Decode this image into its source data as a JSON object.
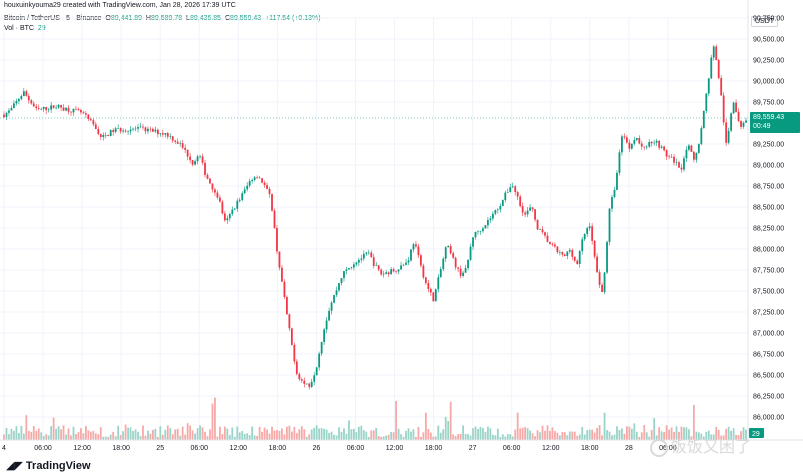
{
  "header": {
    "publisher_line": "houxuinkyouma29 created with TradingView.com, Jan 28, 2026 17:39 UTC",
    "symbol": "Bitcoin / TetherUS · 5 · Binance",
    "ohlc": {
      "o_label": "O",
      "o": "89,441.89",
      "h_label": "H",
      "h": "89,589.78",
      "l_label": "L",
      "l": "89,436.85",
      "c_label": "C",
      "c": "89,559.43",
      "change": "+117.54 (+0.13%)"
    },
    "volume_label": "Vol · BTC",
    "volume_value": "29"
  },
  "currency": "USDT",
  "price_tag": {
    "price": "89,559.43",
    "countdown": "00:49"
  },
  "volume_tag": "29",
  "colors": {
    "up": "#089981",
    "down": "#f23645",
    "up_vol": "#9ad4c9",
    "down_vol": "#f7a9a7",
    "grid": "#f0f3fa"
  },
  "brand": {
    "logo_icon": "tradingview-logo-icon",
    "name": "TradingView"
  },
  "watermark": {
    "icon": "wechat-logo-icon",
    "text": "饭饭又困了"
  },
  "chart_data": {
    "type": "candlestick",
    "symbol": "BTCUSDT",
    "interval_minutes": 5,
    "ylim": [
      85750,
      90750
    ],
    "y_ticks": [
      {
        "value": 90750,
        "label": "90,750.00"
      },
      {
        "value": 90500,
        "label": "90,500.00"
      },
      {
        "value": 90250,
        "label": "90,250.00"
      },
      {
        "value": 90000,
        "label": "90,000.00"
      },
      {
        "value": 89750,
        "label": "89,750.00"
      },
      {
        "value": 89250,
        "label": "89,250.00"
      },
      {
        "value": 89000,
        "label": "89,000.00"
      },
      {
        "value": 88750,
        "label": "88,750.00"
      },
      {
        "value": 88500,
        "label": "88,500.00"
      },
      {
        "value": 88250,
        "label": "88,250.00"
      },
      {
        "value": 88000,
        "label": "88,000.00"
      },
      {
        "value": 87750,
        "label": "87,750.00"
      },
      {
        "value": 87500,
        "label": "87,500.00"
      },
      {
        "value": 87250,
        "label": "87,250.00"
      },
      {
        "value": 87000,
        "label": "87,000.00"
      },
      {
        "value": 86750,
        "label": "86,750.00"
      },
      {
        "value": 86500,
        "label": "86,500.00"
      },
      {
        "value": 86250,
        "label": "86,250.00"
      },
      {
        "value": 86000,
        "label": "86,000.00"
      }
    ],
    "x_ticks": [
      {
        "t": 0,
        "label": "4"
      },
      {
        "t": 6,
        "label": "06:00"
      },
      {
        "t": 12,
        "label": "12:00"
      },
      {
        "t": 18,
        "label": "18:00"
      },
      {
        "t": 24,
        "label": "25"
      },
      {
        "t": 30,
        "label": "06:00"
      },
      {
        "t": 36,
        "label": "12:00"
      },
      {
        "t": 42,
        "label": "18:00"
      },
      {
        "t": 48,
        "label": "26"
      },
      {
        "t": 54,
        "label": "06:00"
      },
      {
        "t": 60,
        "label": "12:00"
      },
      {
        "t": 66,
        "label": "18:00"
      },
      {
        "t": 72,
        "label": "27"
      },
      {
        "t": 78,
        "label": "06:00"
      },
      {
        "t": 84,
        "label": "12:00"
      },
      {
        "t": 90,
        "label": "18:00"
      },
      {
        "t": 96,
        "label": "28"
      },
      {
        "t": 102,
        "label": "06:00"
      }
    ],
    "t_max": 111,
    "path": [
      [
        0,
        89600
      ],
      [
        1,
        89650
      ],
      [
        3,
        89870
      ],
      [
        5,
        89650
      ],
      [
        8,
        89700
      ],
      [
        12,
        89620
      ],
      [
        14,
        89450
      ],
      [
        15,
        89320
      ],
      [
        17,
        89420
      ],
      [
        21,
        89430
      ],
      [
        25,
        89370
      ],
      [
        27,
        89250
      ],
      [
        28,
        89150
      ],
      [
        29,
        89020
      ],
      [
        30,
        89120
      ],
      [
        31,
        88880
      ],
      [
        33,
        88600
      ],
      [
        34,
        88300
      ],
      [
        35,
        88450
      ],
      [
        37,
        88700
      ],
      [
        38,
        88840
      ],
      [
        39,
        88880
      ],
      [
        40,
        88760
      ],
      [
        41,
        88600
      ],
      [
        42,
        87950
      ],
      [
        43,
        87450
      ],
      [
        44,
        86950
      ],
      [
        45,
        86520
      ],
      [
        46,
        86400
      ],
      [
        47,
        86380
      ],
      [
        48,
        86600
      ],
      [
        49,
        87000
      ],
      [
        50,
        87300
      ],
      [
        51,
        87500
      ],
      [
        52,
        87700
      ],
      [
        54,
        87850
      ],
      [
        56,
        87950
      ],
      [
        57,
        87800
      ],
      [
        58,
        87700
      ],
      [
        60,
        87750
      ],
      [
        62,
        87850
      ],
      [
        63,
        88100
      ],
      [
        64,
        87800
      ],
      [
        65,
        87550
      ],
      [
        66,
        87400
      ],
      [
        68,
        88050
      ],
      [
        70,
        87700
      ],
      [
        71,
        87750
      ],
      [
        72,
        88150
      ],
      [
        74,
        88300
      ],
      [
        76,
        88500
      ],
      [
        78,
        88780
      ],
      [
        79,
        88600
      ],
      [
        80,
        88400
      ],
      [
        81,
        88500
      ],
      [
        82,
        88250
      ],
      [
        84,
        88050
      ],
      [
        86,
        87900
      ],
      [
        87,
        88000
      ],
      [
        88,
        87800
      ],
      [
        89,
        88150
      ],
      [
        90,
        88300
      ],
      [
        91,
        87750
      ],
      [
        92,
        87450
      ],
      [
        93,
        88450
      ],
      [
        94,
        88800
      ],
      [
        95,
        89400
      ],
      [
        96,
        89200
      ],
      [
        97,
        89350
      ],
      [
        98,
        89200
      ],
      [
        100,
        89300
      ],
      [
        102,
        89100
      ],
      [
        103,
        89050
      ],
      [
        104,
        88950
      ],
      [
        105,
        89250
      ],
      [
        106,
        89050
      ],
      [
        107,
        89350
      ],
      [
        108,
        89900
      ],
      [
        109,
        90450
      ],
      [
        110,
        89950
      ],
      [
        111,
        89200
      ],
      [
        112,
        89800
      ],
      [
        113,
        89450
      ],
      [
        114,
        89559
      ]
    ],
    "last_close": 89559.43
  }
}
